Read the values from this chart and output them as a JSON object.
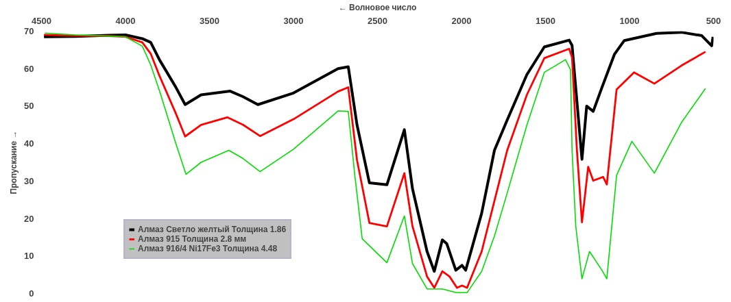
{
  "chart_data": {
    "type": "line",
    "xlabel": "← Волновое число",
    "ylabel": "Пропускание →",
    "xlim": [
      4500,
      500
    ],
    "ylim": [
      0,
      70
    ],
    "xticks": [
      4500,
      4000,
      3500,
      3000,
      2500,
      2000,
      1500,
      1000,
      500
    ],
    "yticks": [
      0,
      10,
      20,
      30,
      40,
      50,
      60,
      70
    ],
    "grid": false,
    "legend": "bottom left",
    "marker": "none",
    "line_style": "solid",
    "series": [
      {
        "name": "Алмаз Светло желтый Толщина 1.86",
        "color": "#000000",
        "x": [
          4485,
          4300,
          4100,
          4000,
          3900,
          3850,
          3797,
          3700,
          3645,
          3550,
          3377,
          3300,
          3212,
          3000,
          2735,
          2674,
          2622,
          2548,
          2444,
          2340,
          2292,
          2205,
          2162,
          2114,
          2088,
          2034,
          1997,
          1975,
          1880,
          1804,
          1728,
          1611,
          1507,
          1359,
          1342,
          1283,
          1255,
          1216,
          1164,
          1090,
          1031,
          839,
          691,
          570,
          511,
          503
        ],
        "values": [
          68.5,
          68.6,
          68.9,
          69,
          68,
          67,
          62.3,
          55,
          50.4,
          53,
          54,
          52.5,
          50.4,
          53.5,
          60,
          60.5,
          45,
          29.5,
          29,
          43.7,
          28,
          11.2,
          5.9,
          14.3,
          13.3,
          6.2,
          7.5,
          6.2,
          21.4,
          38.2,
          46.3,
          58.4,
          65.8,
          67.6,
          66.2,
          35.8,
          50,
          48.6,
          55,
          63.8,
          67.5,
          69.4,
          69.7,
          68.8,
          66.1,
          68.5
        ]
      },
      {
        "name": "Алмаз 915 Толщина 2.8 мм",
        "color": "#ff0000",
        "x": [
          4485,
          4300,
          4100,
          4000,
          3900,
          3850,
          3797,
          3700,
          3645,
          3550,
          3394,
          3300,
          3199,
          3000,
          2735,
          2674,
          2622,
          2548,
          2444,
          2340,
          2292,
          2205,
          2162,
          2114,
          2071,
          2027,
          1997,
          1967,
          1880,
          1804,
          1728,
          1611,
          1507,
          1359,
          1342,
          1313,
          1283,
          1246,
          1216,
          1157,
          1135,
          1077,
          973,
          852,
          691,
          548
        ],
        "values": [
          69,
          68.8,
          68.7,
          68.5,
          67,
          64,
          58,
          48,
          41.9,
          45,
          47,
          45,
          42,
          46.5,
          53.9,
          55,
          35.6,
          18.8,
          17.9,
          32.1,
          18,
          4.5,
          1.5,
          5.9,
          4.5,
          1.5,
          2.1,
          1.5,
          11.2,
          24.7,
          38.2,
          53,
          62.8,
          65.3,
          63,
          38.2,
          19,
          33.8,
          30.1,
          31.1,
          29.1,
          54.4,
          59,
          56,
          60.8,
          64.5
        ]
      },
      {
        "name": "Алмаз 916/4 Ni17Fe3 Толщина 4.48",
        "color": "#00dd00",
        "x": [
          4480,
          4300,
          4100,
          4000,
          3900,
          3850,
          3797,
          3700,
          3640,
          3550,
          3385,
          3300,
          3199,
          3000,
          2735,
          2674,
          2635,
          2591,
          2444,
          2340,
          2292,
          2205,
          2114,
          2027,
          1967,
          1880,
          1804,
          1728,
          1611,
          1507,
          1381,
          1351,
          1342,
          1320,
          1283,
          1238,
          1164,
          1135,
          1077,
          986,
          852,
          691,
          548
        ],
        "values": [
          69.5,
          69,
          68.7,
          68.5,
          66,
          61,
          54,
          40,
          31.8,
          35,
          38.2,
          36,
          32.5,
          38.5,
          48.7,
          48.6,
          31.5,
          14.6,
          8.2,
          20.7,
          8,
          1.2,
          1.2,
          0.2,
          0.2,
          5.9,
          15.3,
          26.8,
          44.9,
          59,
          62.4,
          59.7,
          38.2,
          18,
          3.9,
          11.2,
          6.2,
          3.9,
          31.5,
          40.6,
          32.1,
          45.6,
          54.7
        ]
      }
    ]
  }
}
